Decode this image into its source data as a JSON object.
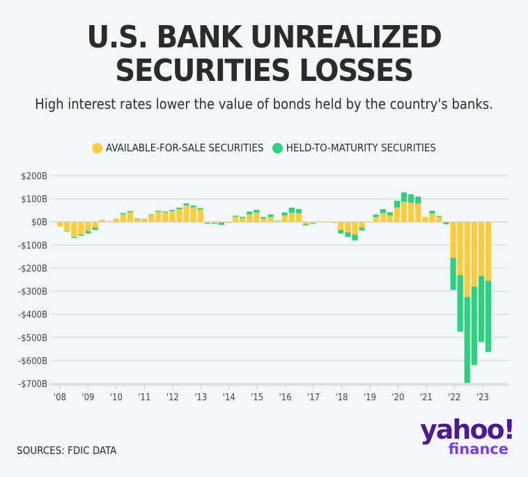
{
  "header": {
    "title_line1": "U.S. BANK UNREALIZED",
    "title_line2": "SECURITIES LOSSES",
    "subtitle": "High interest rates lower the value of bonds held by the country's banks."
  },
  "footer": {
    "source": "SOURCES: FDIC DATA",
    "logo_main": "yahoo!",
    "logo_sub": "finance"
  },
  "colors": {
    "afs": "#fdcb3e",
    "htm": "#2ecf7e",
    "grid": "#d9dde2",
    "text": "#2b2b2b",
    "logo_dark": "#4b1a8f",
    "logo_light": "#7b3fe4"
  },
  "chart_data": {
    "type": "bar",
    "stacked": true,
    "title": "U.S. BANK UNREALIZED SECURITIES LOSSES",
    "xlabel": "",
    "ylabel": "",
    "ylim": [
      -700,
      200
    ],
    "yticks": [
      200,
      100,
      0,
      -100,
      -200,
      -300,
      -400,
      -500,
      -600,
      -700
    ],
    "ytick_labels": [
      "$200B",
      "$100B",
      "$0B",
      "-$100B",
      "-$200B",
      "-$300B",
      "-$400B",
      "-$500B",
      "-$600B",
      "-$700B"
    ],
    "xtick_labels": [
      "'08",
      "'09",
      "'10",
      "'11",
      "'12",
      "'13",
      "'14",
      "'15",
      "'16",
      "'17",
      "'18",
      "'19",
      "'20",
      "'21",
      "'22",
      "'23"
    ],
    "grid": true,
    "legend_position": "top-center",
    "units": "billions USD",
    "categories": [
      "2008Q1",
      "2008Q2",
      "2008Q3",
      "2008Q4",
      "2009Q1",
      "2009Q2",
      "2009Q3",
      "2009Q4",
      "2010Q1",
      "2010Q2",
      "2010Q3",
      "2010Q4",
      "2011Q1",
      "2011Q2",
      "2011Q3",
      "2011Q4",
      "2012Q1",
      "2012Q2",
      "2012Q3",
      "2012Q4",
      "2013Q1",
      "2013Q2",
      "2013Q3",
      "2013Q4",
      "2014Q1",
      "2014Q2",
      "2014Q3",
      "2014Q4",
      "2015Q1",
      "2015Q2",
      "2015Q3",
      "2015Q4",
      "2016Q1",
      "2016Q2",
      "2016Q3",
      "2016Q4",
      "2017Q1",
      "2017Q2",
      "2017Q3",
      "2017Q4",
      "2018Q1",
      "2018Q2",
      "2018Q3",
      "2018Q4",
      "2019Q1",
      "2019Q2",
      "2019Q3",
      "2019Q4",
      "2020Q1",
      "2020Q2",
      "2020Q3",
      "2020Q4",
      "2021Q1",
      "2021Q2",
      "2021Q3",
      "2021Q4",
      "2022Q1",
      "2022Q2",
      "2022Q3",
      "2022Q4",
      "2023Q1",
      "2023Q2"
    ],
    "series": [
      {
        "name": "AVAILABLE-FOR-SALE SECURITIES",
        "color": "#fdcb3e",
        "values": [
          -20,
          -40,
          -65,
          -55,
          -40,
          -25,
          10,
          3,
          13,
          33,
          42,
          12,
          11,
          30,
          44,
          41,
          47,
          55,
          72,
          64,
          55,
          -5,
          -5,
          -3,
          -5,
          22,
          17,
          33,
          40,
          14,
          22,
          3,
          28,
          40,
          38,
          -10,
          -5,
          -2,
          0,
          -5,
          -35,
          -45,
          -55,
          -25,
          -3,
          22,
          38,
          28,
          62,
          88,
          84,
          80,
          22,
          36,
          22,
          -2,
          -155,
          -230,
          -325,
          -280,
          -235,
          -255
        ]
      },
      {
        "name": "HELD-TO-MATURITY SECURITIES",
        "color": "#2ecf7e",
        "values": [
          0,
          -2,
          -4,
          -5,
          -10,
          -10,
          0,
          0,
          1,
          5,
          5,
          3,
          2,
          3,
          4,
          4,
          5,
          7,
          8,
          7,
          5,
          -3,
          -3,
          -10,
          0,
          5,
          5,
          12,
          12,
          7,
          10,
          2,
          13,
          22,
          18,
          -5,
          -3,
          0,
          0,
          0,
          -15,
          -20,
          -25,
          -12,
          0,
          10,
          17,
          14,
          30,
          40,
          36,
          30,
          0,
          12,
          4,
          -8,
          -140,
          -245,
          -372,
          -340,
          -285,
          -308
        ]
      }
    ]
  }
}
